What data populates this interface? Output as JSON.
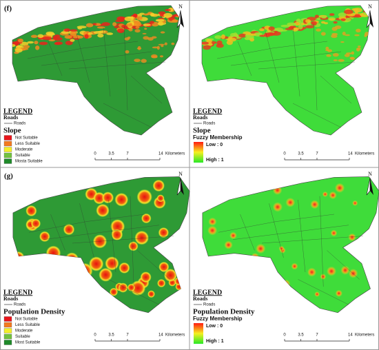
{
  "panels": [
    {
      "label": "(f)",
      "north": "N",
      "legend": {
        "title": "LEGEND",
        "roads_heading": "Roads",
        "roads_item": "Roads",
        "layer": "Slope",
        "items": [
          {
            "name": "Not Suitable",
            "color": "#e8151b"
          },
          {
            "name": "Less Suitable",
            "color": "#f37a1f"
          },
          {
            "name": "Moderate",
            "color": "#f4ee2a"
          },
          {
            "name": "Suitable",
            "color": "#72c23f"
          },
          {
            "name": "Mosta Suitable",
            "color": "#1f8a2a"
          }
        ]
      },
      "scale": {
        "ticks": [
          0,
          3.5,
          7,
          14
        ],
        "unit": "Kilometers"
      }
    },
    {
      "north": "N",
      "legend": {
        "title": "LEGEND",
        "roads_heading": "Roads",
        "roads_item": "Roads",
        "layer": "Slope",
        "sublayer": "Fuzzy Membership",
        "low": "Low : 0",
        "high": "High : 1"
      },
      "scale": {
        "ticks": [
          0,
          3.5,
          7,
          14
        ],
        "unit": "Kilometers"
      }
    },
    {
      "label": "(g)",
      "north": "N",
      "legend": {
        "title": "LEGEND",
        "roads_heading": "Roads",
        "roads_item": "Roads",
        "layer": "Population Density",
        "items": [
          {
            "name": "Not Suitable",
            "color": "#e8151b"
          },
          {
            "name": "Less Suitable",
            "color": "#f37a1f"
          },
          {
            "name": "Moderate",
            "color": "#f4ee2a"
          },
          {
            "name": "Suitable",
            "color": "#72c23f"
          },
          {
            "name": "Most Suitable",
            "color": "#1f8a2a"
          }
        ]
      },
      "scale": {
        "ticks": [
          0,
          3.5,
          7,
          14
        ],
        "unit": "Kilometers"
      }
    },
    {
      "north": "N",
      "legend": {
        "title": "LEGEND",
        "roads_heading": "Roads",
        "roads_item": "Roads",
        "layer": "Population Density",
        "sublayer": "Fuzzy Membership",
        "low": "Low : 0",
        "high": "High : 1"
      },
      "scale": {
        "ticks": [
          0,
          3.5,
          7,
          14
        ],
        "unit": "Kilometers"
      }
    }
  ]
}
